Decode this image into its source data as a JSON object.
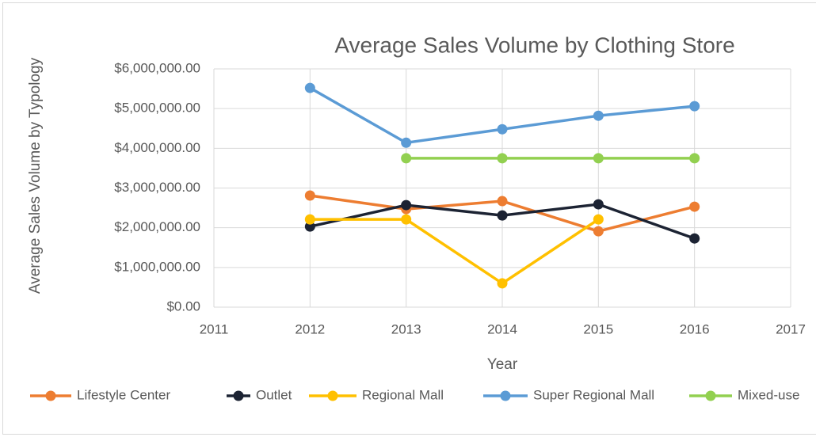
{
  "chart_data": {
    "type": "line",
    "title": "Average Sales Volume by Clothing Store",
    "x_label": "Year",
    "y_label": "Average Sales Volume by Typology",
    "x": [
      2012,
      2013,
      2014,
      2015,
      2016
    ],
    "series": [
      {
        "name": "Lifestyle Center",
        "color": "#ed7d31",
        "values": [
          2810000,
          2470000,
          2670000,
          1910000,
          2530000
        ]
      },
      {
        "name": "Outlet",
        "color": "#1c2333",
        "values": [
          2030000,
          2570000,
          2310000,
          2590000,
          1730000
        ]
      },
      {
        "name": "Regional Mall",
        "color": "#ffc000",
        "values": [
          2210000,
          2210000,
          600000,
          2210000,
          null
        ]
      },
      {
        "name": "Super Regional Mall",
        "color": "#5b9bd5",
        "values": [
          5520000,
          4140000,
          4480000,
          4820000,
          5060000
        ]
      },
      {
        "name": "Mixed-use",
        "color": "#92d050",
        "values": [
          null,
          3750000,
          3750000,
          3750000,
          3750000
        ]
      }
    ],
    "xlim": [
      2011,
      2017
    ],
    "xticks": [
      2011,
      2012,
      2013,
      2014,
      2015,
      2016,
      2017
    ],
    "ylim": [
      0,
      6000000
    ],
    "yticks": [
      {
        "value": 0,
        "label": "$0.00"
      },
      {
        "value": 1000000,
        "label": "$1,000,000.00"
      },
      {
        "value": 2000000,
        "label": "$2,000,000.00"
      },
      {
        "value": 3000000,
        "label": "$3,000,000.00"
      },
      {
        "value": 4000000,
        "label": "$4,000,000.00"
      },
      {
        "value": 5000000,
        "label": "$5,000,000.00"
      },
      {
        "value": 6000000,
        "label": "$6,000,000.00"
      }
    ],
    "grid": true,
    "legend": "bottom"
  }
}
